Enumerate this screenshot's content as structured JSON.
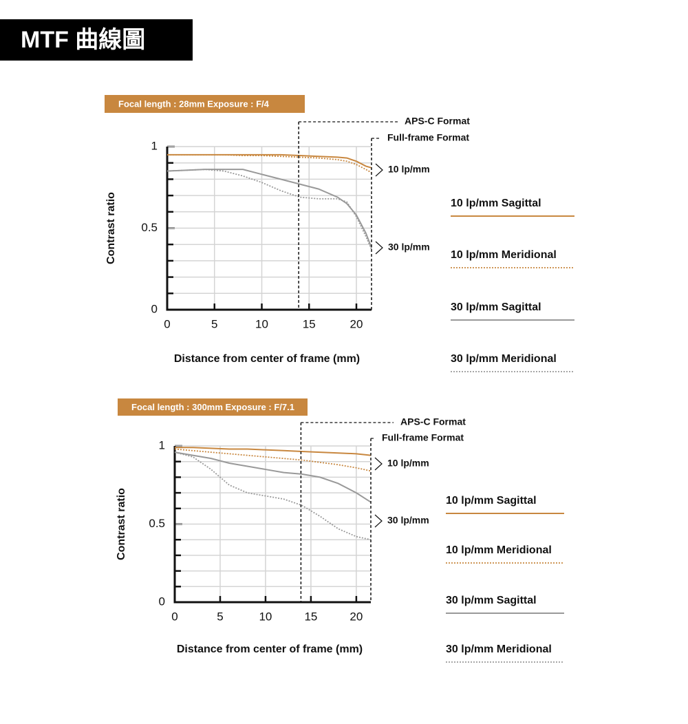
{
  "title": "MTF 曲線圖",
  "chart_data": [
    {
      "type": "line",
      "banner": "Focal length : 28mm   Exposure : F/4",
      "y_label": "Contrast ratio",
      "x_label": "Distance from center of frame (mm)",
      "xlim": [
        0,
        21.6
      ],
      "ylim": [
        0,
        1
      ],
      "xticks": [
        0,
        5,
        10,
        15,
        20
      ],
      "yticks": [
        0,
        0.5,
        1
      ],
      "yminorticks": [
        0.1,
        0.2,
        0.3,
        0.4,
        0.6,
        0.7,
        0.8,
        0.9
      ],
      "grid": true,
      "x": [
        0,
        2,
        4,
        6,
        8,
        10,
        12,
        14,
        16,
        18,
        19,
        20,
        21,
        21.6
      ],
      "series": [
        {
          "name": "10 lp/mm Sagittal",
          "color": "#c8873f",
          "dash": "solid",
          "values": [
            0.95,
            0.95,
            0.95,
            0.95,
            0.95,
            0.95,
            0.95,
            0.945,
            0.94,
            0.935,
            0.93,
            0.91,
            0.88,
            0.87
          ]
        },
        {
          "name": "10 lp/mm Meridional",
          "color": "#c8873f",
          "dash": "dotted",
          "values": [
            0.95,
            0.95,
            0.95,
            0.95,
            0.945,
            0.945,
            0.94,
            0.935,
            0.93,
            0.92,
            0.91,
            0.89,
            0.86,
            0.84
          ]
        },
        {
          "name": "30 lp/mm Sagittal",
          "color": "#999999",
          "dash": "solid",
          "values": [
            0.85,
            0.855,
            0.86,
            0.86,
            0.86,
            0.83,
            0.8,
            0.77,
            0.74,
            0.69,
            0.65,
            0.58,
            0.47,
            0.38
          ]
        },
        {
          "name": "30 lp/mm Meridional",
          "color": "#999999",
          "dash": "dotted",
          "values": [
            0.85,
            0.855,
            0.86,
            0.85,
            0.82,
            0.78,
            0.73,
            0.69,
            0.68,
            0.68,
            0.66,
            0.57,
            0.45,
            0.37
          ]
        }
      ],
      "annotations": [
        {
          "text": "APS-C Format",
          "x": 13.9
        },
        {
          "text": "Full-frame Format",
          "x": 21.6
        }
      ],
      "brackets": [
        "10 lp/mm",
        "30 lp/mm"
      ]
    },
    {
      "type": "line",
      "banner": "Focal length : 300mm Exposure : F/7.1",
      "y_label": "Contrast ratio",
      "x_label": "Distance from center of frame (mm)",
      "xlim": [
        0,
        21.6
      ],
      "ylim": [
        0,
        1
      ],
      "xticks": [
        0,
        5,
        10,
        15,
        20
      ],
      "yticks": [
        0,
        0.5,
        1
      ],
      "yminorticks": [
        0.1,
        0.2,
        0.3,
        0.4,
        0.6,
        0.7,
        0.8,
        0.9
      ],
      "grid": true,
      "x": [
        0,
        2,
        4,
        6,
        8,
        10,
        12,
        14,
        16,
        18,
        20,
        21.6
      ],
      "series": [
        {
          "name": "10 lp/mm Sagittal",
          "color": "#c8873f",
          "dash": "solid",
          "values": [
            0.99,
            0.99,
            0.985,
            0.98,
            0.98,
            0.975,
            0.97,
            0.965,
            0.96,
            0.955,
            0.95,
            0.94
          ]
        },
        {
          "name": "10 lp/mm Meridional",
          "color": "#c8873f",
          "dash": "dotted",
          "values": [
            0.98,
            0.97,
            0.96,
            0.95,
            0.94,
            0.93,
            0.92,
            0.91,
            0.895,
            0.88,
            0.86,
            0.84
          ]
        },
        {
          "name": "30 lp/mm Sagittal",
          "color": "#999999",
          "dash": "solid",
          "values": [
            0.96,
            0.94,
            0.92,
            0.89,
            0.87,
            0.85,
            0.83,
            0.82,
            0.8,
            0.76,
            0.7,
            0.64
          ]
        },
        {
          "name": "30 lp/mm Meridional",
          "color": "#999999",
          "dash": "dotted",
          "values": [
            0.96,
            0.93,
            0.85,
            0.75,
            0.7,
            0.68,
            0.66,
            0.62,
            0.55,
            0.47,
            0.42,
            0.4
          ]
        }
      ],
      "annotations": [
        {
          "text": "APS-C Format",
          "x": 13.9
        },
        {
          "text": "Full-frame Format",
          "x": 21.6
        }
      ],
      "brackets": [
        "10 lp/mm",
        "30 lp/mm"
      ]
    }
  ]
}
